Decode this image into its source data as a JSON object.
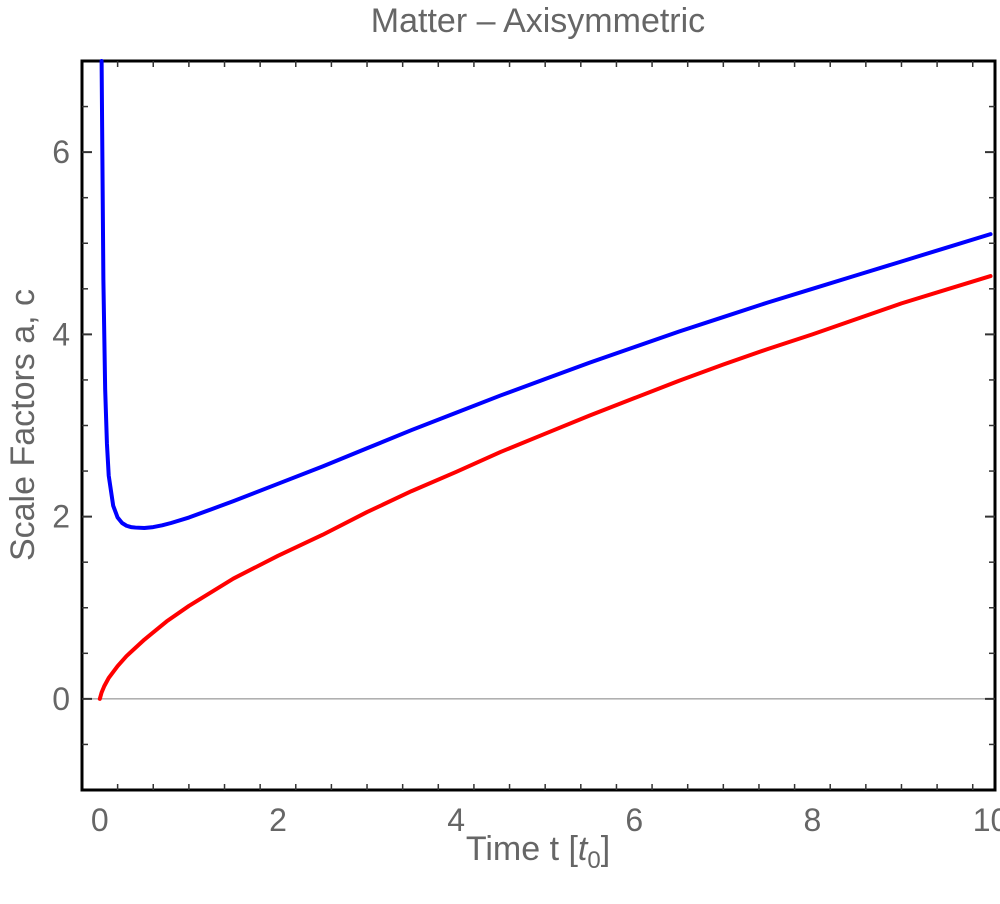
{
  "chart_data": {
    "type": "line",
    "title": "Matter – Axisymmetric",
    "xlabel_main": "Time  t [",
    "xlabel_unit": "t",
    "xlabel_sub": "0",
    "xlabel_close": "]",
    "ylabel": "Scale Factors  a, c",
    "xlim": [
      -0.2,
      10.05
    ],
    "ylim": [
      -1.0,
      7.0
    ],
    "x_ticks": [
      0,
      2,
      4,
      6,
      8,
      10
    ],
    "y_ticks": [
      0,
      2,
      4,
      6
    ],
    "x_tick_labels": [
      "0",
      "2",
      "4",
      "6",
      "8",
      "10"
    ],
    "y_tick_labels": [
      "0",
      "2",
      "4",
      "6"
    ],
    "grid": false,
    "zero_line": true,
    "series": [
      {
        "color": "#0000ff",
        "x": [
          0.02,
          0.04,
          0.06,
          0.08,
          0.1,
          0.15,
          0.2,
          0.25,
          0.3,
          0.35,
          0.4,
          0.5,
          0.6,
          0.7,
          0.8,
          1.0,
          1.25,
          1.5,
          2.0,
          2.5,
          3.0,
          3.5,
          4.0,
          4.5,
          5.0,
          5.5,
          6.0,
          6.5,
          7.0,
          7.5,
          8.0,
          8.5,
          9.0,
          9.5,
          10.0
        ],
        "y": [
          7.0,
          4.6,
          3.4,
          2.8,
          2.45,
          2.12,
          1.99,
          1.93,
          1.9,
          1.885,
          1.88,
          1.875,
          1.885,
          1.905,
          1.93,
          1.99,
          2.08,
          2.17,
          2.36,
          2.55,
          2.75,
          2.95,
          3.14,
          3.33,
          3.51,
          3.69,
          3.86,
          4.03,
          4.19,
          4.35,
          4.5,
          4.65,
          4.8,
          4.95,
          5.1
        ]
      },
      {
        "color": "#ff0000",
        "x": [
          0.0,
          0.02,
          0.05,
          0.1,
          0.2,
          0.3,
          0.5,
          0.75,
          1.0,
          1.5,
          2.0,
          2.5,
          3.0,
          3.5,
          4.0,
          4.5,
          5.0,
          5.5,
          6.0,
          6.5,
          7.0,
          7.5,
          8.0,
          8.5,
          9.0,
          9.5,
          10.0
        ],
        "y": [
          0.0,
          0.07,
          0.14,
          0.23,
          0.36,
          0.47,
          0.65,
          0.85,
          1.02,
          1.32,
          1.57,
          1.8,
          2.05,
          2.28,
          2.49,
          2.71,
          2.91,
          3.11,
          3.3,
          3.49,
          3.67,
          3.84,
          4.0,
          4.17,
          4.34,
          4.49,
          4.64
        ]
      }
    ]
  }
}
